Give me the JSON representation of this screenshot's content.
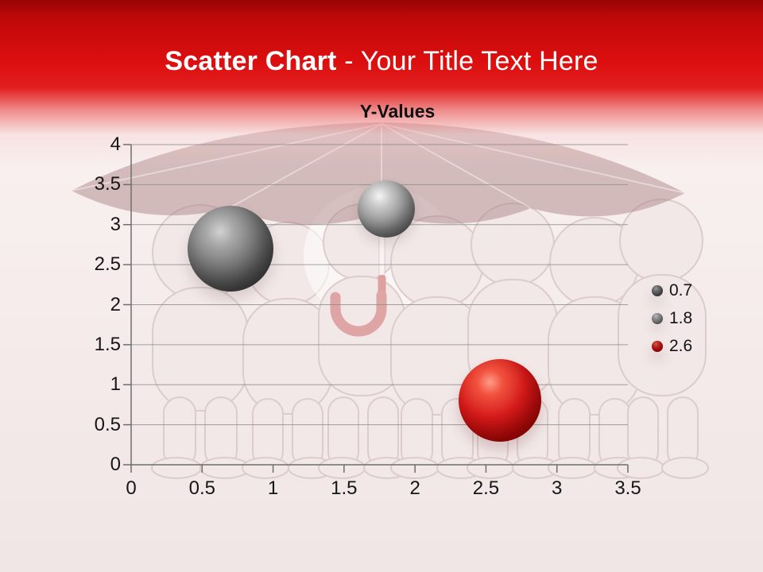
{
  "slide": {
    "header": {
      "title_bold": "Scatter Chart",
      "title_separator": " - ",
      "title_regular": "Your Title Text Here",
      "band_color": "#dc0e0e"
    }
  },
  "chart_data": {
    "type": "scatter",
    "title": "Y-Values",
    "xlabel": "",
    "ylabel": "",
    "xlim": [
      0,
      3.5
    ],
    "ylim": [
      0,
      4
    ],
    "x_ticks": [
      "0",
      "0.5",
      "1",
      "1.5",
      "2",
      "2.5",
      "3",
      "3.5"
    ],
    "y_ticks": [
      "0",
      "0.5",
      "1",
      "1.5",
      "2",
      "2.5",
      "3",
      "3.5",
      "4"
    ],
    "grid": true,
    "legend_position": "right",
    "legend_labels": [
      "0.7",
      "1.8",
      "2.6"
    ],
    "series": [
      {
        "name": "0.7",
        "style": "darkgray",
        "color": "#595959",
        "bubble_radius_px": 54,
        "points": [
          {
            "x": 0.7,
            "y": 2.7
          }
        ]
      },
      {
        "name": "1.8",
        "style": "gray",
        "color": "#8c8c8c",
        "bubble_radius_px": 36,
        "points": [
          {
            "x": 1.8,
            "y": 3.2
          }
        ]
      },
      {
        "name": "2.6",
        "style": "red",
        "color": "#c00000",
        "bubble_radius_px": 52,
        "points": [
          {
            "x": 2.6,
            "y": 0.8
          }
        ]
      }
    ]
  }
}
